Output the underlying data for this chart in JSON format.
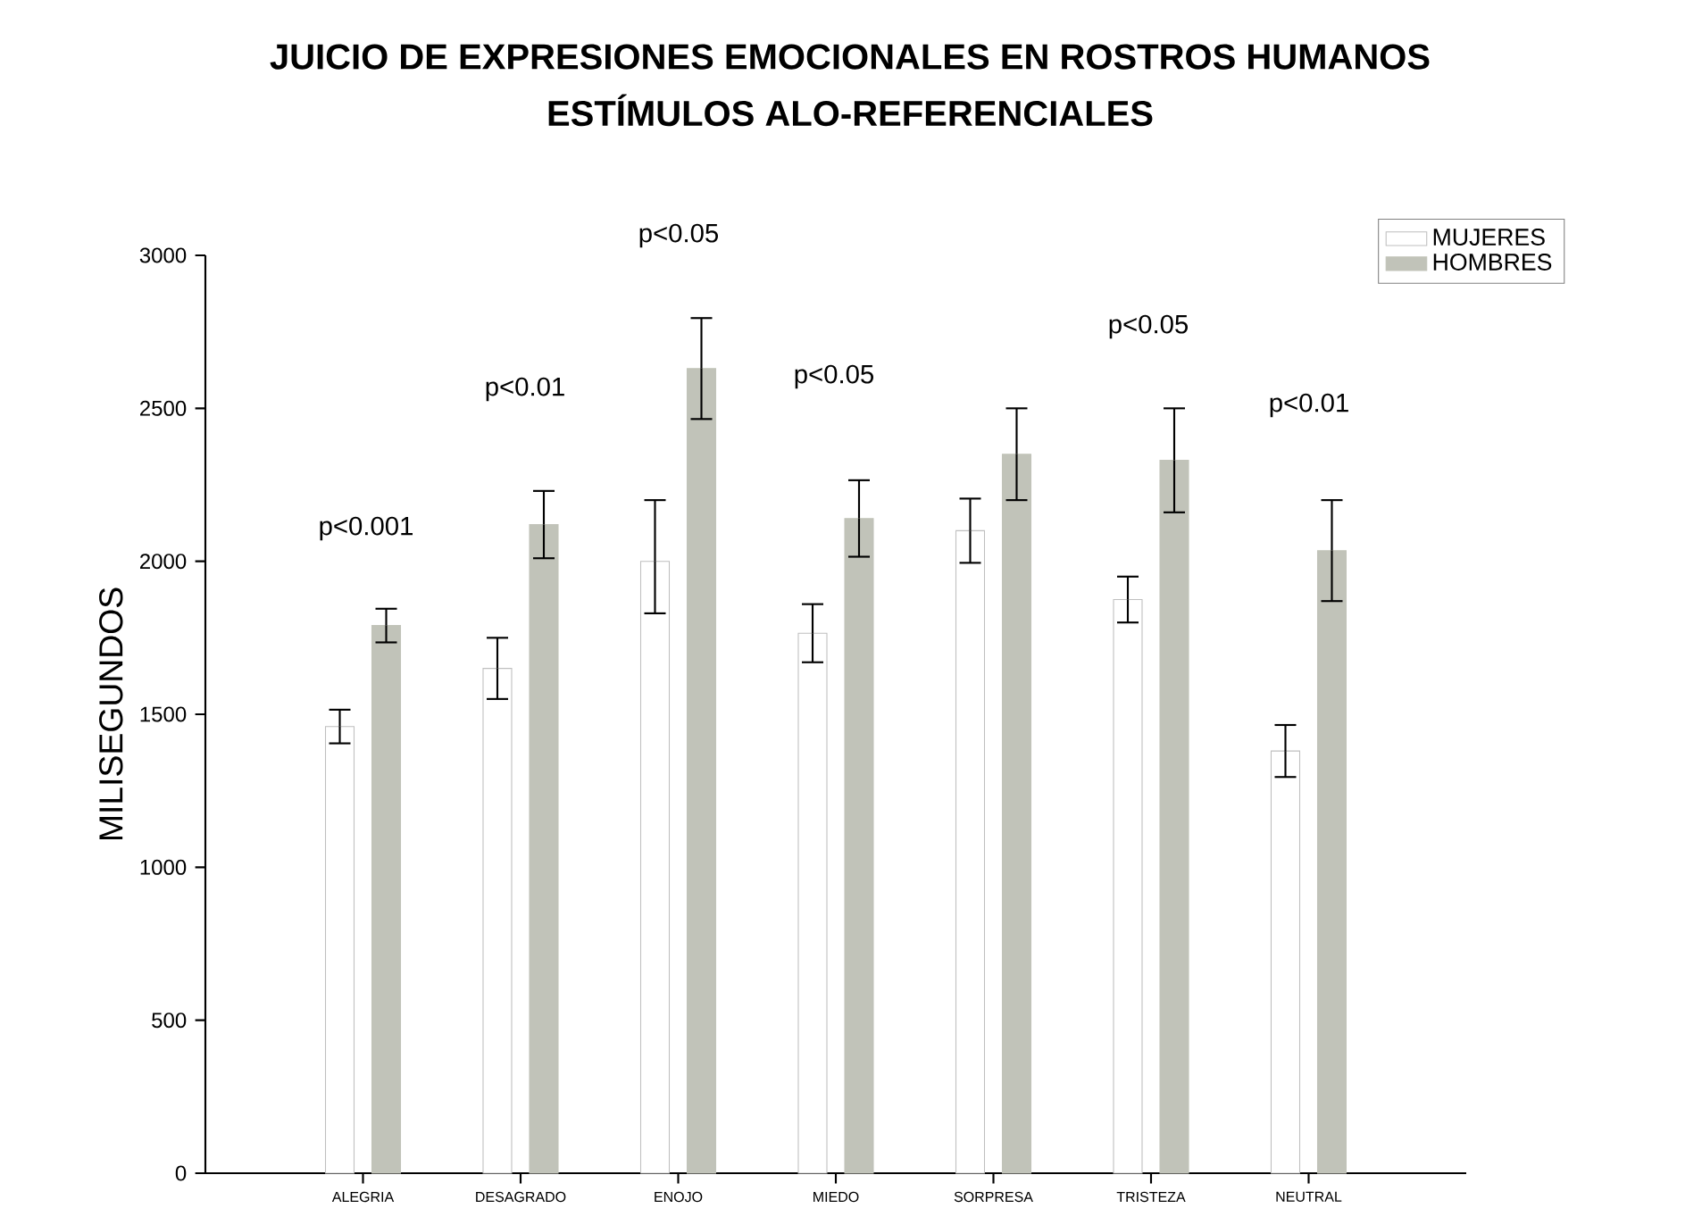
{
  "chart_data": {
    "type": "bar",
    "title": "JUICIO DE EXPRESIONES EMOCIONALES EN ROSTROS HUMANOS",
    "subtitle": "ESTÍMULOS ALO-REFERENCIALES",
    "ylabel": "MILISEGUNDOS",
    "categories": [
      "ALEGRIA",
      "DESAGRADO",
      "ENOJO",
      "MIEDO",
      "SORPRESA",
      "TRISTEZA",
      "NEUTRAL"
    ],
    "series": [
      {
        "name": "MUJERES",
        "color": "#ffffff",
        "values": [
          1460,
          1650,
          2000,
          1765,
          2100,
          1875,
          1380
        ],
        "errors": [
          55,
          100,
          [
            1830,
            2200
          ],
          95,
          105,
          75,
          85
        ]
      },
      {
        "name": "HOMBRES",
        "color": "#c1c3b9",
        "values": [
          1790,
          2120,
          2630,
          2140,
          2350,
          2330,
          2035
        ],
        "errors": [
          55,
          110,
          165,
          125,
          150,
          170,
          165
        ]
      }
    ],
    "ylim": [
      0,
      3000
    ],
    "yticks": [
      0,
      500,
      1000,
      1500,
      2000,
      2500,
      3000
    ],
    "legend": "top right",
    "annotations": [
      "p<0.001",
      "p<0.01",
      "p<0.05",
      "p<0.05",
      "p<0.05",
      "p<0.01"
    ]
  }
}
